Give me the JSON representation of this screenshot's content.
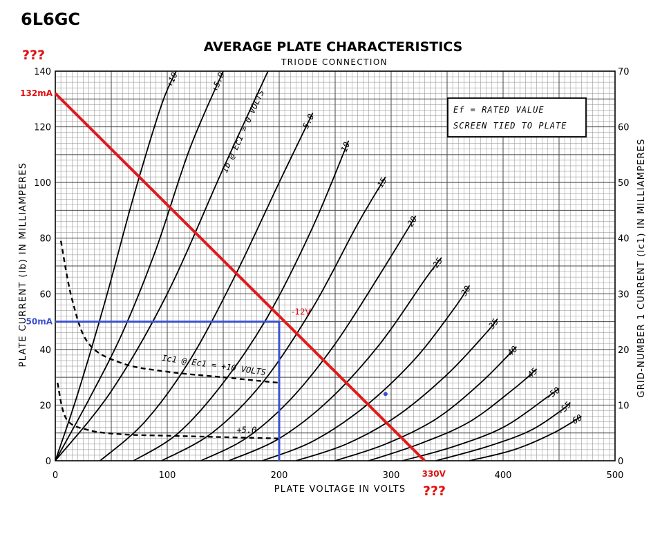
{
  "page": {
    "tube": "6L6GC",
    "question_marks": "???",
    "annot_132": "132mA",
    "annot_50": "50mA",
    "annot_neg12": "-12V",
    "annot_330": "330V"
  },
  "chart_data": {
    "type": "line",
    "title": "AVERAGE PLATE CHARACTERISTICS",
    "subtitle": "TRIODE CONNECTION",
    "xlabel": "PLATE VOLTAGE IN VOLTS",
    "ylabel": "PLATE CURRENT (Ib) IN MILLIAMPERES",
    "y2label": "GRID-NUMBER 1 CURRENT (Ic1) IN MILLIAMPERES",
    "xlim": [
      0,
      500
    ],
    "ylim": [
      0,
      140
    ],
    "y2lim": [
      0,
      70
    ],
    "grid": true,
    "xticks": [
      "0",
      "100",
      "200",
      "300",
      "400",
      "500"
    ],
    "yticks": [
      "0",
      "20",
      "40",
      "60",
      "80",
      "100",
      "120",
      "140"
    ],
    "y2ticks": [
      "0",
      "10",
      "20",
      "30",
      "40",
      "50",
      "60",
      "70"
    ],
    "note_lines": [
      "Ef = RATED VALUE",
      "SCREEN TIED TO PLATE"
    ],
    "plate_curves": [
      {
        "label": "+10",
        "x": [
          0,
          20,
          45,
          70,
          95,
          108
        ],
        "y": [
          0,
          24,
          58,
          95,
          128,
          140
        ]
      },
      {
        "label": "+5.0",
        "x": [
          0,
          30,
          60,
          90,
          120,
          150
        ],
        "y": [
          0,
          22,
          46,
          76,
          112,
          140
        ]
      },
      {
        "label": "Ib @ Ec1 = 0 VOLTS",
        "x": [
          0,
          50,
          100,
          150,
          190
        ],
        "y": [
          0,
          25,
          60,
          105,
          140
        ]
      },
      {
        "label": "-5.0",
        "x": [
          40,
          80,
          120,
          160,
          200,
          230
        ],
        "y": [
          0,
          14,
          36,
          66,
          100,
          125
        ]
      },
      {
        "label": "-10",
        "x": [
          70,
          110,
          150,
          190,
          230,
          262
        ],
        "y": [
          0,
          10,
          28,
          52,
          84,
          115
        ]
      },
      {
        "label": "-15",
        "x": [
          95,
          140,
          185,
          230,
          270,
          295
        ],
        "y": [
          0,
          10,
          28,
          55,
          85,
          102
        ]
      },
      {
        "label": "-20",
        "x": [
          130,
          170,
          210,
          250,
          290,
          322
        ],
        "y": [
          0,
          8,
          22,
          42,
          67,
          88
        ]
      },
      {
        "label": "-25",
        "x": [
          155,
          200,
          245,
          290,
          330,
          345
        ],
        "y": [
          0,
          8,
          22,
          42,
          65,
          73
        ]
      },
      {
        "label": "-30",
        "x": [
          185,
          230,
          275,
          320,
          355,
          370
        ],
        "y": [
          0,
          7,
          19,
          36,
          54,
          63
        ]
      },
      {
        "label": "-35",
        "x": [
          215,
          260,
          305,
          350,
          385,
          395
        ],
        "y": [
          0,
          6,
          16,
          31,
          46,
          51
        ]
      },
      {
        "label": "-40",
        "x": [
          250,
          295,
          340,
          380,
          412
        ],
        "y": [
          0,
          6,
          15,
          28,
          41
        ]
      },
      {
        "label": "-45",
        "x": [
          280,
          325,
          370,
          410,
          430
        ],
        "y": [
          0,
          6,
          14,
          26,
          33
        ]
      },
      {
        "label": "-50",
        "x": [
          310,
          355,
          400,
          440,
          450
        ],
        "y": [
          0,
          5,
          12,
          23,
          26
        ]
      },
      {
        "label": "-55",
        "x": [
          340,
          385,
          425,
          455,
          460
        ],
        "y": [
          0,
          5,
          11,
          19,
          21
        ]
      },
      {
        "label": "-60",
        "x": [
          370,
          410,
          445,
          470
        ],
        "y": [
          0,
          4,
          10,
          16
        ]
      }
    ],
    "grid_current_curves": [
      {
        "label": "Ic1 @ Ec1 = +10 VOLTS",
        "x": [
          5,
          15,
          30,
          60,
          100,
          150,
          200
        ],
        "y": [
          79,
          58,
          42,
          35,
          32,
          30,
          28
        ]
      },
      {
        "label": "+5.0",
        "x": [
          2,
          10,
          30,
          60,
          100,
          150,
          200
        ],
        "y": [
          28,
          15,
          11,
          9.5,
          9,
          8.5,
          8
        ]
      }
    ],
    "load_line": {
      "x": [
        0,
        330
      ],
      "y": [
        132,
        0
      ]
    },
    "operating_point": {
      "x": 200,
      "y": 50,
      "grid_volts": "-12V"
    },
    "bias_marker": {
      "x": 295,
      "y": 24
    }
  }
}
